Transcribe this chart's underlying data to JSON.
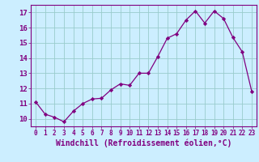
{
  "x": [
    0,
    1,
    2,
    3,
    4,
    5,
    6,
    7,
    8,
    9,
    10,
    11,
    12,
    13,
    14,
    15,
    16,
    17,
    18,
    19,
    20,
    21,
    22,
    23
  ],
  "y": [
    11.1,
    10.3,
    10.1,
    9.8,
    10.5,
    11.0,
    11.3,
    11.35,
    11.9,
    12.3,
    12.2,
    13.0,
    13.0,
    14.1,
    15.3,
    15.6,
    16.5,
    17.1,
    16.3,
    17.1,
    16.6,
    15.35,
    14.4,
    11.8
  ],
  "line_color": "#800080",
  "marker": "D",
  "marker_size": 2.2,
  "bg_color": "#cceeff",
  "grid_color": "#99cccc",
  "xlabel": "Windchill (Refroidissement éolien,°C)",
  "xlabel_color": "#800080",
  "tick_color": "#800080",
  "ylim": [
    9.5,
    17.5
  ],
  "xlim": [
    -0.5,
    23.5
  ],
  "yticks": [
    10,
    11,
    12,
    13,
    14,
    15,
    16,
    17
  ],
  "xticks": [
    0,
    1,
    2,
    3,
    4,
    5,
    6,
    7,
    8,
    9,
    10,
    11,
    12,
    13,
    14,
    15,
    16,
    17,
    18,
    19,
    20,
    21,
    22,
    23
  ],
  "xlabel_fontsize": 7,
  "xtick_fontsize": 5.5,
  "ytick_fontsize": 6.5
}
